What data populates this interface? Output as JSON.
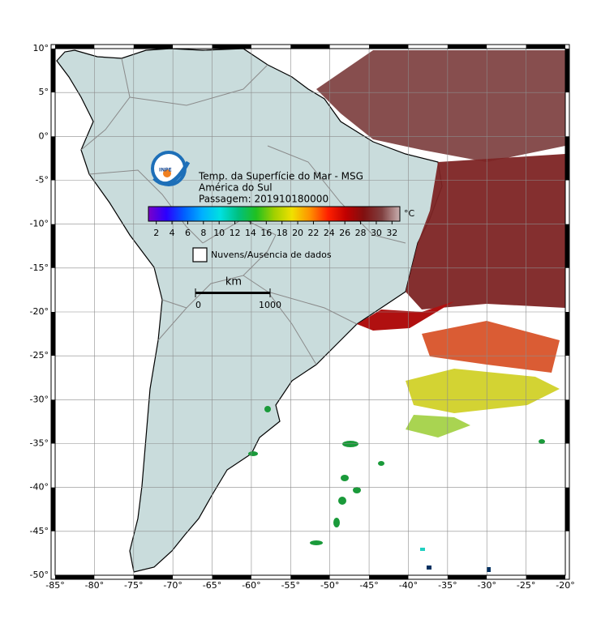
{
  "map": {
    "xlim": [
      -85,
      -20
    ],
    "ylim": [
      -50,
      10
    ],
    "xticks": [
      {
        "value": -85,
        "label": "-85°"
      },
      {
        "value": -80,
        "label": "-80°"
      },
      {
        "value": -75,
        "label": "-75°"
      },
      {
        "value": -70,
        "label": "-70°"
      },
      {
        "value": -65,
        "label": "-65°"
      },
      {
        "value": -60,
        "label": "-60°"
      },
      {
        "value": -55,
        "label": "-55°"
      },
      {
        "value": -50,
        "label": "-50°"
      },
      {
        "value": -45,
        "label": "-45°"
      },
      {
        "value": -40,
        "label": "-40°"
      },
      {
        "value": -35,
        "label": "-35°"
      },
      {
        "value": -30,
        "label": "-30°"
      },
      {
        "value": -25,
        "label": "-25°"
      },
      {
        "value": -20,
        "label": "-20°"
      }
    ],
    "yticks": [
      {
        "value": 10,
        "label": "10°"
      },
      {
        "value": 5,
        "label": "5°"
      },
      {
        "value": 0,
        "label": "0°"
      },
      {
        "value": -5,
        "label": "-5°"
      },
      {
        "value": -10,
        "label": "-10°"
      },
      {
        "value": -15,
        "label": "-15°"
      },
      {
        "value": -20,
        "label": "-20°"
      },
      {
        "value": -25,
        "label": "-25°"
      },
      {
        "value": -30,
        "label": "-30°"
      },
      {
        "value": -35,
        "label": "-35°"
      },
      {
        "value": -40,
        "label": "-40°"
      },
      {
        "value": -45,
        "label": "-45°"
      },
      {
        "value": -50,
        "label": "-50°"
      }
    ],
    "grid": true
  },
  "header": {
    "logo": "INPE",
    "lines": [
      "Temp. da Superfície do Mar - MSG",
      "América do Sul",
      "Passagem: 201910180000"
    ]
  },
  "colorbar": {
    "clim": [
      1,
      33
    ],
    "ticks": [
      2,
      4,
      6,
      8,
      10,
      12,
      14,
      16,
      18,
      20,
      22,
      24,
      26,
      28,
      30,
      32
    ],
    "unit": "°C",
    "colors": [
      "#7a00c8",
      "#2a00ff",
      "#0060ff",
      "#00b0ff",
      "#00e0e0",
      "#00c080",
      "#20c020",
      "#a0d000",
      "#f0e000",
      "#ff9000",
      "#ff2000",
      "#c00000",
      "#801010",
      "#804040",
      "#c8b0b0"
    ]
  },
  "legend": {
    "label": "Nuvens/Ausencia de dados"
  },
  "scale": {
    "unit": "km",
    "ticks": [
      0,
      1000
    ]
  }
}
